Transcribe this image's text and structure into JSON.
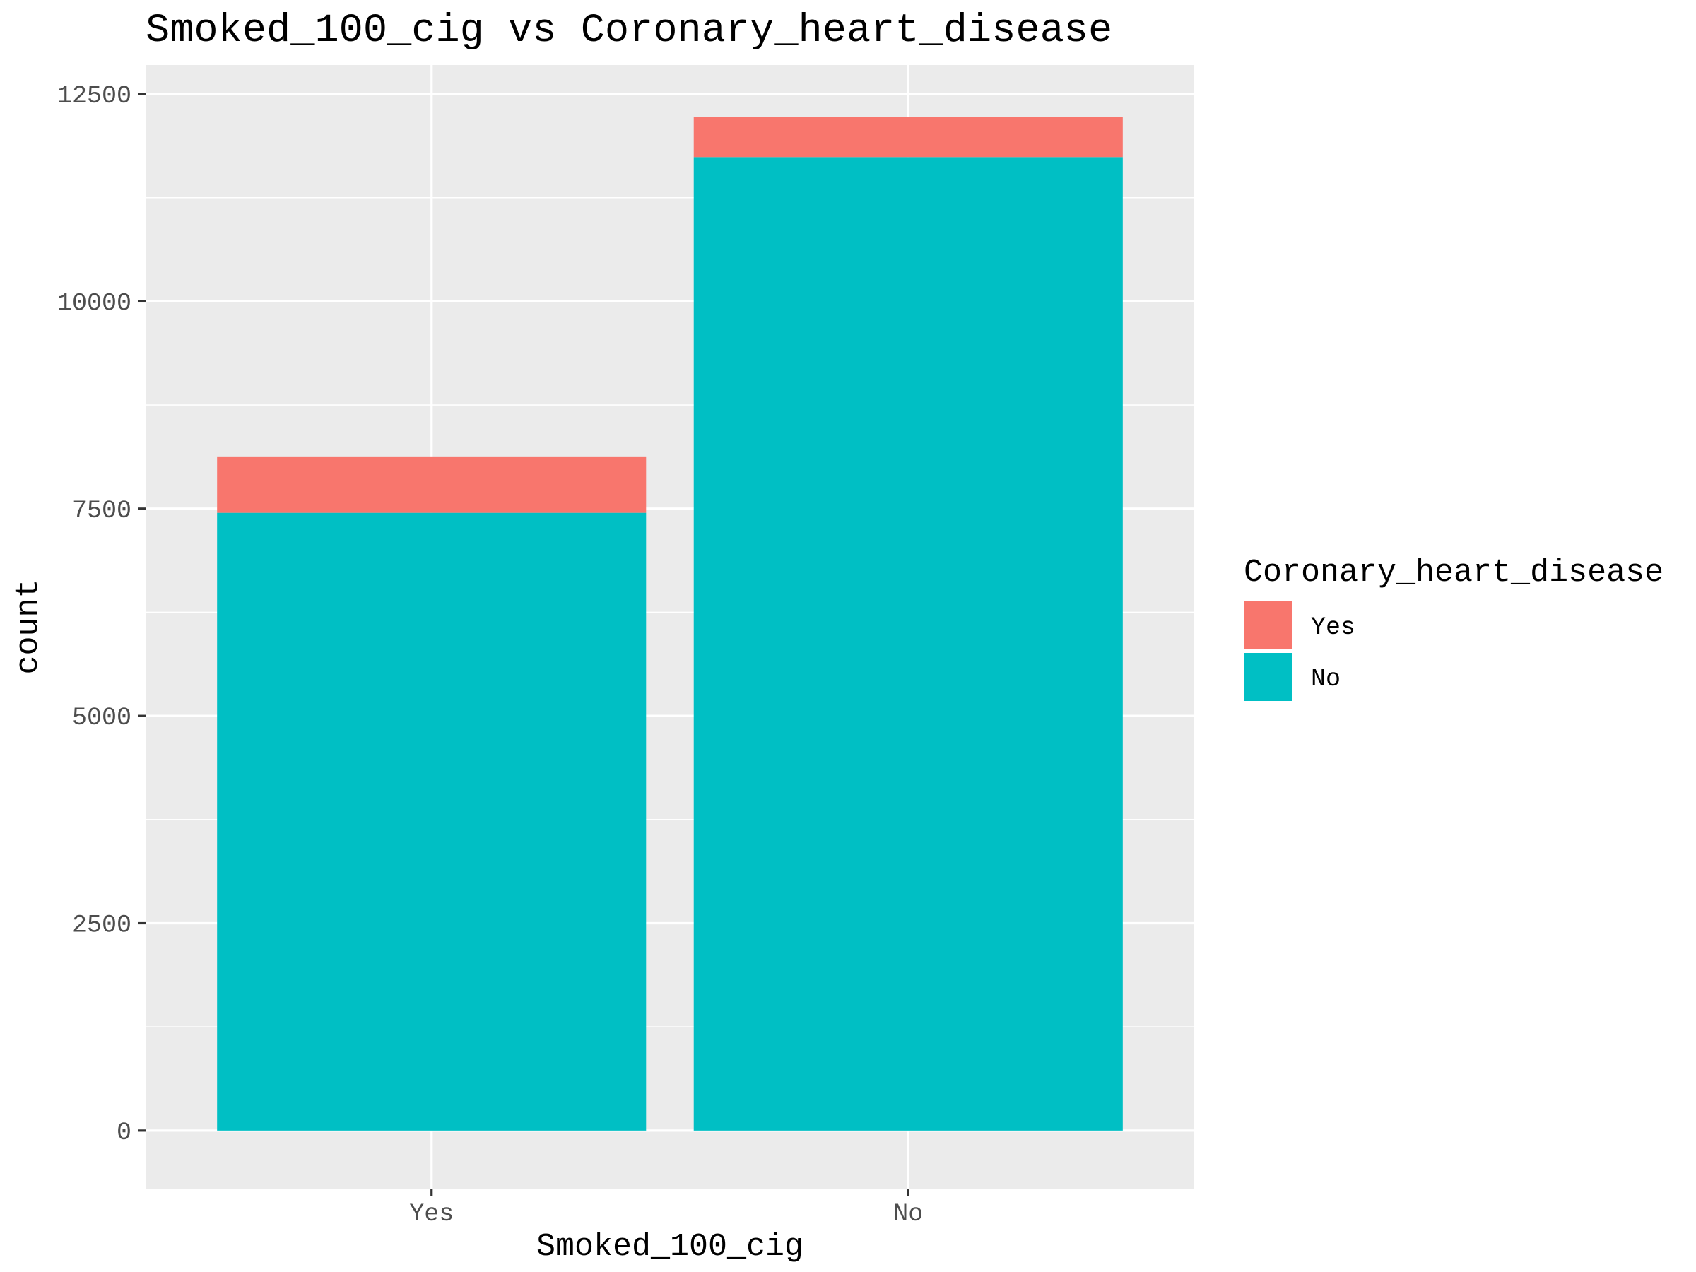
{
  "chart_data": {
    "type": "bar",
    "stacked": true,
    "title": "Smoked_100_cig vs Coronary_heart_disease",
    "xlabel": "Smoked_100_cig",
    "ylabel": "count",
    "categories": [
      "Yes",
      "No"
    ],
    "series": [
      {
        "name": "Yes",
        "color": "#F8766D",
        "values": [
          680,
          480
        ]
      },
      {
        "name": "No",
        "color": "#00BFC4",
        "values": [
          7450,
          11740
        ]
      }
    ],
    "ylim": [
      -700,
      12850
    ],
    "yticks": [
      0,
      2500,
      5000,
      7500,
      10000,
      12500
    ],
    "ytick_labels": [
      "0",
      "2500",
      "5000",
      "7500",
      "10000",
      "12500"
    ],
    "grid": true,
    "legend": {
      "title": "Coronary_heart_disease",
      "position": "right"
    },
    "colors": {
      "panel_background": "#EBEBEB",
      "grid": "#FFFFFF",
      "tick_text": "#4D4D4D"
    }
  }
}
